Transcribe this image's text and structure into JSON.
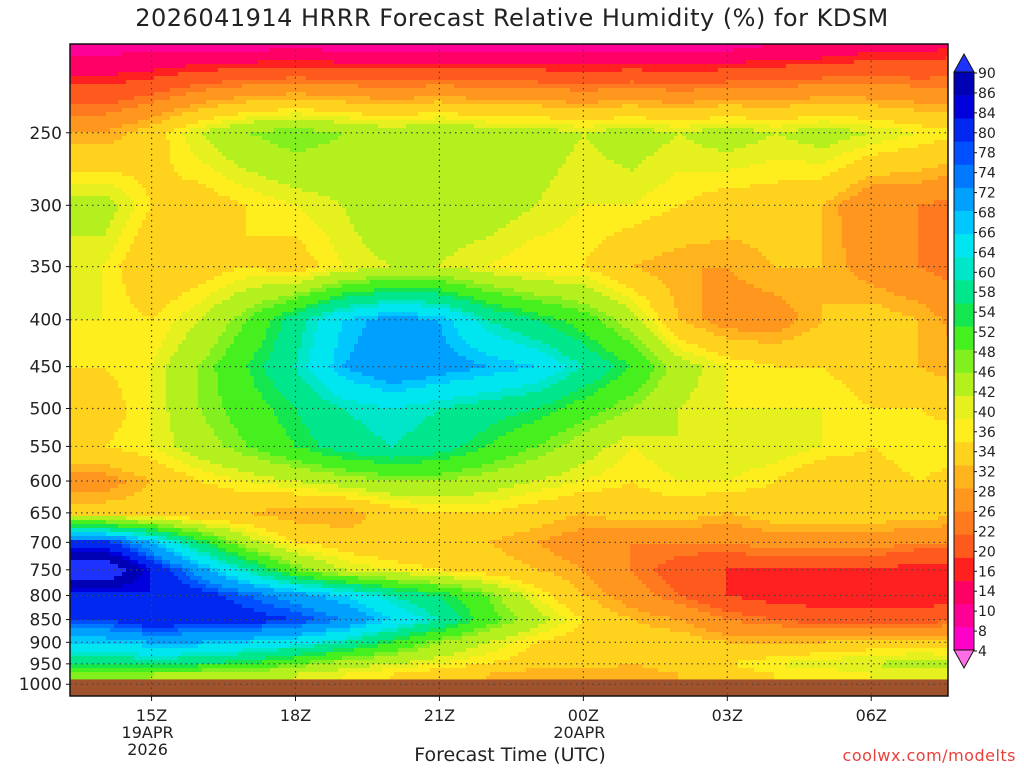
{
  "title": "2026041914 HRRR Forecast Relative Humidity (%) for KDSM",
  "credit": "coolwx.com/modelts",
  "colors": {
    "ground": "#a0522d",
    "grid": "#444444"
  },
  "chart_data": {
    "type": "heatmap",
    "title": "2026041914 HRRR Forecast Relative Humidity (%) for KDSM",
    "xlabel": "Forecast Time (UTC)",
    "ylabel": "",
    "y_scale": "log",
    "ylim": [
      200,
      1030
    ],
    "y_ticks": [
      250,
      300,
      350,
      400,
      450,
      500,
      550,
      600,
      650,
      700,
      750,
      800,
      850,
      900,
      950,
      1000
    ],
    "x_ticks": [
      {
        "label": "15Z",
        "sub": [
          "19APR",
          "2026"
        ]
      },
      {
        "label": "18Z",
        "sub": []
      },
      {
        "label": "21Z",
        "sub": []
      },
      {
        "label": "00Z",
        "sub": [
          "20APR"
        ]
      },
      {
        "label": "03Z",
        "sub": []
      },
      {
        "label": "06Z",
        "sub": []
      }
    ],
    "x_hours": [
      14,
      15,
      16,
      17,
      18,
      19,
      20,
      21,
      22,
      23,
      24,
      25,
      26,
      27,
      28,
      29,
      30,
      31,
      32
    ],
    "levels": [
      200,
      250,
      300,
      350,
      400,
      450,
      500,
      550,
      600,
      650,
      700,
      750,
      800,
      850,
      900,
      950,
      975
    ],
    "rh": [
      [
        8,
        8,
        8,
        8,
        8,
        8,
        8,
        8,
        8,
        8,
        8,
        8,
        8,
        8,
        10,
        10,
        12,
        12,
        14
      ],
      [
        26,
        30,
        36,
        40,
        42,
        40,
        38,
        40,
        38,
        38,
        36,
        38,
        36,
        38,
        36,
        38,
        36,
        34,
        32
      ],
      [
        38,
        32,
        30,
        32,
        34,
        36,
        40,
        38,
        38,
        36,
        34,
        34,
        32,
        30,
        30,
        28,
        22,
        22,
        20
      ],
      [
        34,
        28,
        30,
        32,
        30,
        34,
        36,
        36,
        34,
        32,
        32,
        28,
        26,
        26,
        28,
        28,
        24,
        22,
        20
      ],
      [
        34,
        32,
        36,
        42,
        50,
        58,
        62,
        60,
        52,
        48,
        44,
        38,
        28,
        24,
        24,
        28,
        30,
        28,
        24
      ],
      [
        32,
        34,
        40,
        46,
        52,
        60,
        64,
        62,
        60,
        58,
        52,
        46,
        38,
        34,
        32,
        32,
        30,
        28,
        26
      ],
      [
        30,
        34,
        40,
        44,
        48,
        52,
        54,
        52,
        50,
        48,
        44,
        40,
        36,
        34,
        34,
        34,
        32,
        32,
        30
      ],
      [
        32,
        34,
        38,
        42,
        46,
        50,
        52,
        50,
        46,
        42,
        38,
        34,
        36,
        36,
        36,
        34,
        32,
        34,
        34
      ],
      [
        24,
        28,
        32,
        34,
        36,
        38,
        40,
        40,
        38,
        36,
        34,
        32,
        34,
        34,
        32,
        28,
        30,
        32,
        30
      ],
      [
        30,
        30,
        28,
        28,
        26,
        26,
        30,
        32,
        32,
        30,
        28,
        30,
        30,
        28,
        30,
        30,
        30,
        30,
        28
      ],
      [
        70,
        60,
        48,
        38,
        32,
        30,
        28,
        28,
        28,
        26,
        24,
        22,
        22,
        22,
        24,
        24,
        24,
        22,
        22
      ],
      [
        84,
        72,
        62,
        52,
        42,
        36,
        34,
        32,
        30,
        28,
        26,
        22,
        18,
        16,
        16,
        16,
        16,
        14,
        14
      ],
      [
        70,
        72,
        70,
        66,
        62,
        58,
        52,
        48,
        42,
        34,
        28,
        24,
        20,
        16,
        14,
        14,
        14,
        14,
        14
      ],
      [
        68,
        72,
        70,
        70,
        68,
        64,
        58,
        52,
        44,
        38,
        32,
        28,
        26,
        22,
        20,
        18,
        18,
        18,
        20
      ],
      [
        58,
        60,
        60,
        58,
        56,
        52,
        46,
        40,
        36,
        32,
        30,
        30,
        30,
        28,
        28,
        28,
        30,
        30,
        30
      ],
      [
        48,
        50,
        48,
        46,
        42,
        38,
        36,
        34,
        32,
        30,
        30,
        28,
        30,
        32,
        34,
        36,
        36,
        38,
        36
      ],
      [
        40,
        40,
        38,
        38,
        36,
        34,
        32,
        30,
        28,
        26,
        26,
        26,
        28,
        30,
        32,
        32,
        34,
        34,
        34
      ]
    ],
    "colorbar": {
      "labels": [
        4,
        8,
        10,
        14,
        16,
        20,
        22,
        26,
        28,
        32,
        34,
        36,
        40,
        42,
        46,
        48,
        52,
        54,
        58,
        60,
        64,
        66,
        68,
        72,
        74,
        78,
        80,
        84,
        86,
        90
      ],
      "colors": [
        "#ff00c8",
        "#ff0096",
        "#ff0064",
        "#ff2020",
        "#ff5a1e",
        "#ff7a1e",
        "#ff961e",
        "#ffb41e",
        "#ffd21e",
        "#ffee1e",
        "#e6f01e",
        "#b4f01e",
        "#82f01e",
        "#46f01e",
        "#14e650",
        "#00e68c",
        "#00e6c8",
        "#00e6f0",
        "#00c8ff",
        "#00a0ff",
        "#0078ff",
        "#0050ff",
        "#0028f0",
        "#0000dc",
        "#0000b4"
      ],
      "under_color": "#ff6ee6",
      "over_color": "#1e32ff"
    }
  }
}
